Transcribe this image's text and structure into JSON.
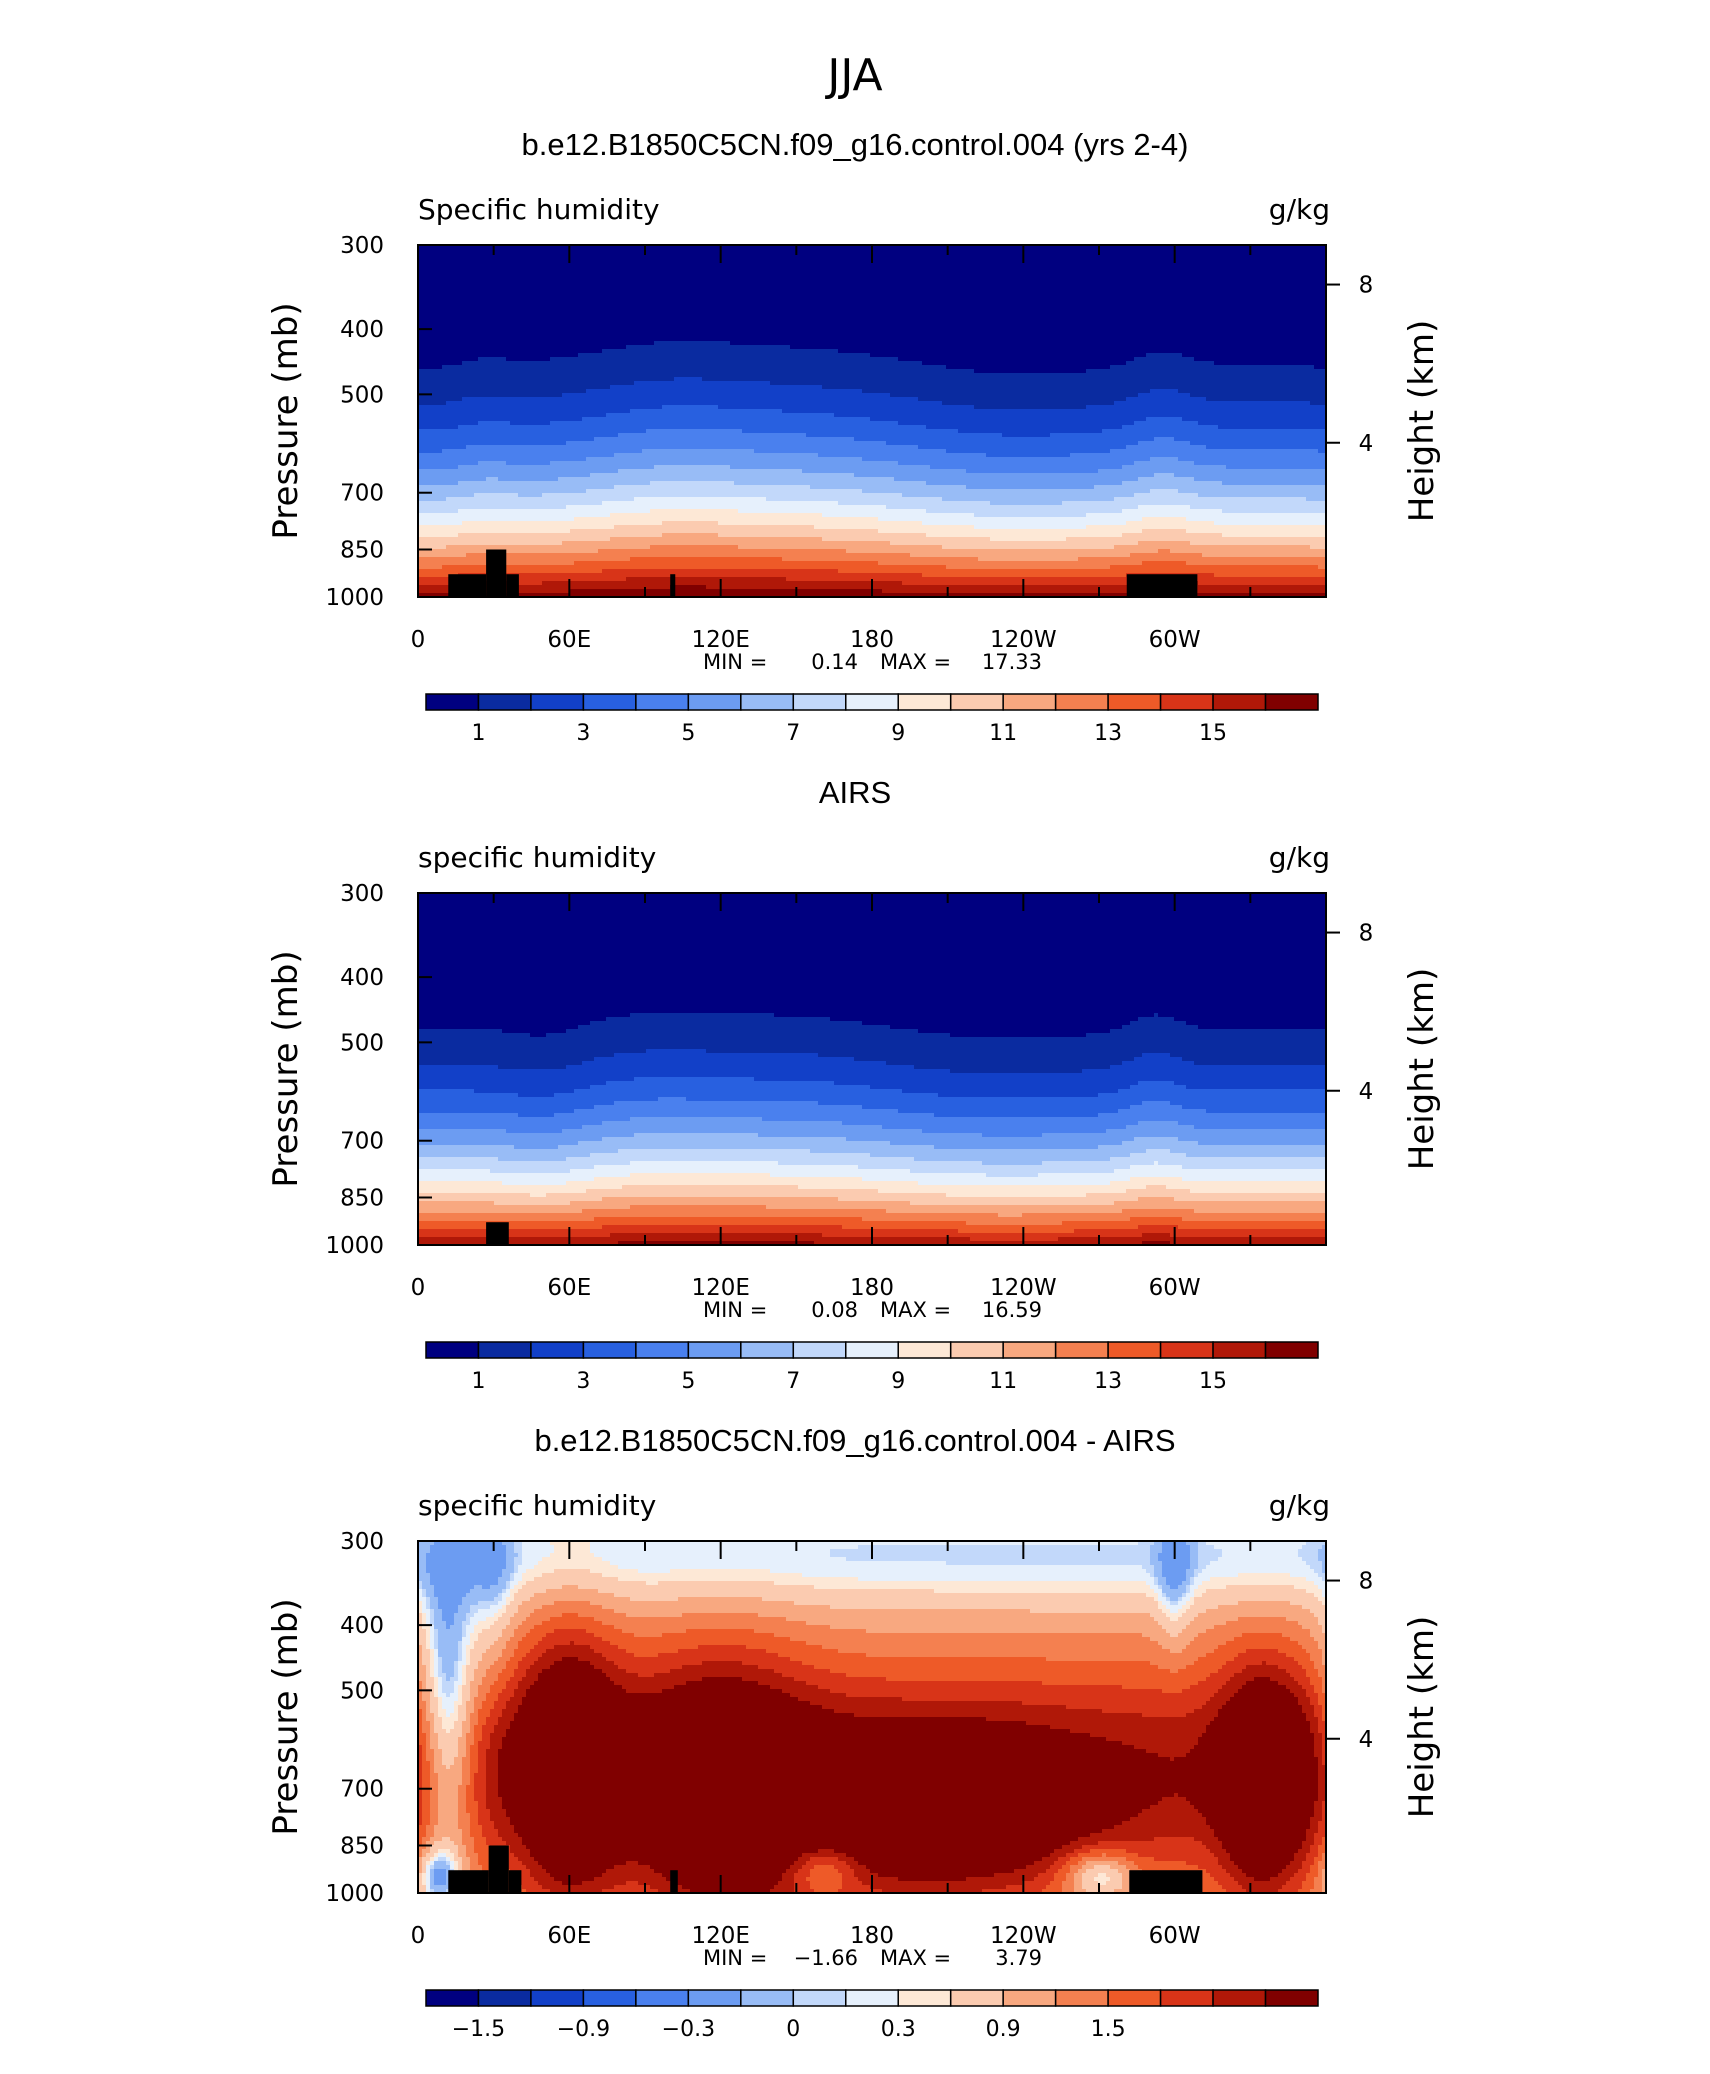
{
  "figure_title": "JJA",
  "chart_data": [
    {
      "type": "heatmap",
      "title": "b.e12.B1850C5CN.f09_g16.control.004 (yrs 2-4)",
      "left_label": "Specific humidity",
      "units": "g/kg",
      "ylabel": "Pressure (mb)",
      "ylabel_right": "Height (km)",
      "x_ticks": [
        "0",
        "60E",
        "120E",
        "180",
        "120W",
        "60W"
      ],
      "x_tick_lon": [
        0,
        60,
        120,
        180,
        240,
        300
      ],
      "xlim": [
        0,
        360
      ],
      "y_ticks": [
        "300",
        "400",
        "500",
        "700",
        "850",
        "1000"
      ],
      "y_tick_values": [
        300,
        400,
        500,
        700,
        850,
        1000
      ],
      "ylim": [
        300,
        1000
      ],
      "y_scale": "log",
      "y_ticks_right": [
        "8",
        "4"
      ],
      "y_ticks_right_values": [
        8,
        4
      ],
      "min_label": "MIN =",
      "min": "0.14",
      "max_label": "MAX =",
      "max": "17.33",
      "colorbar": {
        "colors": [
          "#000080",
          "#0a2ba0",
          "#1240c8",
          "#2860e0",
          "#4a80ee",
          "#6c9cf2",
          "#98bcf6",
          "#c2d8fa",
          "#e6f0fc",
          "#fde8d6",
          "#fbcbb0",
          "#f8a880",
          "#f48050",
          "#ee5a28",
          "#d83418",
          "#b01808",
          "#800000"
        ],
        "tick_labels": [
          "1",
          "3",
          "5",
          "7",
          "9",
          "11",
          "13",
          "15"
        ]
      },
      "field": "model"
    },
    {
      "type": "heatmap",
      "title": "AIRS",
      "left_label": "specific humidity",
      "units": "g/kg",
      "ylabel": "Pressure (mb)",
      "ylabel_right": "Height (km)",
      "x_ticks": [
        "0",
        "60E",
        "120E",
        "180",
        "120W",
        "60W"
      ],
      "x_tick_lon": [
        0,
        60,
        120,
        180,
        240,
        300
      ],
      "xlim": [
        0,
        360
      ],
      "y_ticks": [
        "300",
        "400",
        "500",
        "700",
        "850",
        "1000"
      ],
      "y_tick_values": [
        300,
        400,
        500,
        700,
        850,
        1000
      ],
      "ylim": [
        300,
        1000
      ],
      "y_scale": "log",
      "y_ticks_right": [
        "8",
        "4"
      ],
      "y_ticks_right_values": [
        8,
        4
      ],
      "min_label": "MIN =",
      "min": "0.08",
      "max_label": "MAX =",
      "max": "16.59",
      "colorbar": {
        "colors": [
          "#000080",
          "#0a2ba0",
          "#1240c8",
          "#2860e0",
          "#4a80ee",
          "#6c9cf2",
          "#98bcf6",
          "#c2d8fa",
          "#e6f0fc",
          "#fde8d6",
          "#fbcbb0",
          "#f8a880",
          "#f48050",
          "#ee5a28",
          "#d83418",
          "#b01808",
          "#800000"
        ],
        "tick_labels": [
          "1",
          "3",
          "5",
          "7",
          "9",
          "11",
          "13",
          "15"
        ]
      },
      "field": "obs"
    },
    {
      "type": "heatmap",
      "title": "b.e12.B1850C5CN.f09_g16.control.004 - AIRS",
      "left_label": "specific humidity",
      "units": "g/kg",
      "ylabel": "Pressure (mb)",
      "ylabel_right": "Height (km)",
      "x_ticks": [
        "0",
        "60E",
        "120E",
        "180",
        "120W",
        "60W"
      ],
      "x_tick_lon": [
        0,
        60,
        120,
        180,
        240,
        300
      ],
      "xlim": [
        0,
        360
      ],
      "y_ticks": [
        "300",
        "400",
        "500",
        "700",
        "850",
        "1000"
      ],
      "y_tick_values": [
        300,
        400,
        500,
        700,
        850,
        1000
      ],
      "ylim": [
        300,
        1000
      ],
      "y_scale": "log",
      "y_ticks_right": [
        "8",
        "4"
      ],
      "y_ticks_right_values": [
        8,
        4
      ],
      "min_label": "MIN =",
      "min": "−1.66",
      "max_label": "MAX =",
      "max": "3.79",
      "colorbar": {
        "colors": [
          "#000080",
          "#0a2ba0",
          "#1240c8",
          "#2860e0",
          "#4a80ee",
          "#6c9cf2",
          "#98bcf6",
          "#c2d8fa",
          "#e6f0fc",
          "#fde8d6",
          "#fbcbb0",
          "#f8a880",
          "#f48050",
          "#ee5a28",
          "#d83418",
          "#b01808",
          "#800000"
        ],
        "tick_labels": [
          "−1.5",
          "−0.9",
          "−0.3",
          "0",
          "0.3",
          "0.9",
          "1.5"
        ]
      },
      "field": "diff"
    }
  ]
}
